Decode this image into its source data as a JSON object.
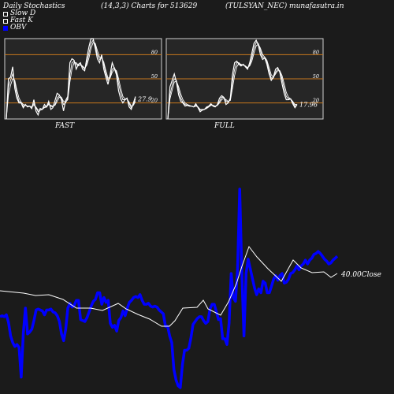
{
  "header": {
    "title": "Daily Stochastics",
    "params": "(14,3,3) Charts for 513629",
    "symbol": "(TULSYAN_NEC) munafasutra.in"
  },
  "legend": [
    {
      "label": "Slow  D",
      "color": "#ffffff",
      "style": "outline"
    },
    {
      "label": "Fast K",
      "color": "#ffffff",
      "style": "outline"
    },
    {
      "label": "OBV",
      "color": "#0000ff",
      "style": "fill"
    }
  ],
  "chart_data": [
    {
      "type": "line",
      "title": "FAST",
      "ylim": [
        0,
        100
      ],
      "gridlines": [
        20,
        50,
        80
      ],
      "gridline_labels": [
        "20",
        "50",
        "80"
      ],
      "last_value_label": "27.9",
      "series": [
        {
          "values": [
            0,
            50,
            52,
            65,
            38,
            26,
            20,
            20,
            14,
            18,
            15,
            16,
            13,
            24,
            10,
            5,
            13,
            12,
            18,
            15,
            22,
            12,
            14,
            23,
            32,
            30,
            24,
            10,
            23,
            28,
            70,
            75,
            73,
            62,
            68,
            70,
            62,
            60,
            76,
            90,
            100,
            100,
            88,
            75,
            70,
            80,
            62,
            52,
            43,
            55,
            70,
            63,
            55,
            35,
            25,
            20,
            24,
            26,
            15,
            12,
            20,
            27.9
          ]
        },
        {
          "values": [
            0,
            40,
            48,
            56,
            46,
            30,
            22,
            20,
            16,
            17,
            16,
            16,
            15,
            19,
            14,
            9,
            11,
            12,
            15,
            16,
            19,
            16,
            15,
            18,
            26,
            29,
            27,
            18,
            20,
            26,
            55,
            70,
            72,
            68,
            66,
            68,
            65,
            62,
            70,
            82,
            94,
            98,
            92,
            80,
            74,
            76,
            68,
            56,
            48,
            52,
            62,
            64,
            58,
            44,
            32,
            24,
            24,
            25,
            19,
            14,
            18,
            25
          ]
        },
        {
          "values": [
            0,
            30,
            42,
            50,
            48,
            36,
            26,
            21,
            18,
            17,
            16,
            16,
            15,
            17,
            15,
            11,
            11,
            12,
            14,
            15,
            18,
            17,
            16,
            17,
            22,
            27,
            27,
            22,
            21,
            24,
            46,
            62,
            70,
            70,
            67,
            67,
            66,
            63,
            67,
            76,
            88,
            95,
            94,
            85,
            77,
            76,
            71,
            60,
            51,
            51,
            58,
            62,
            60,
            50,
            38,
            28,
            25,
            25,
            21,
            16,
            17,
            22
          ]
        }
      ]
    },
    {
      "type": "line",
      "title": "FULL",
      "ylim": [
        0,
        100
      ],
      "gridlines": [
        20,
        50,
        80
      ],
      "gridline_labels": [
        "20",
        "50",
        "80"
      ],
      "last_value_label": "17.96",
      "series": [
        {
          "values": [
            0,
            40,
            48,
            56,
            46,
            30,
            22,
            20,
            16,
            17,
            16,
            16,
            15,
            19,
            14,
            9,
            11,
            12,
            15,
            16,
            19,
            16,
            15,
            18,
            26,
            29,
            27,
            18,
            20,
            26,
            55,
            70,
            72,
            68,
            66,
            68,
            65,
            62,
            70,
            82,
            94,
            98,
            92,
            80,
            74,
            76,
            68,
            56,
            48,
            52,
            62,
            64,
            58,
            44,
            32,
            24,
            24,
            25,
            19,
            14,
            18
          ]
        },
        {
          "values": [
            0,
            30,
            42,
            50,
            48,
            36,
            26,
            21,
            18,
            17,
            16,
            16,
            15,
            17,
            15,
            11,
            11,
            12,
            14,
            15,
            18,
            17,
            16,
            17,
            22,
            27,
            27,
            22,
            21,
            24,
            46,
            62,
            70,
            70,
            67,
            67,
            66,
            63,
            67,
            76,
            88,
            95,
            94,
            85,
            77,
            76,
            71,
            60,
            51,
            51,
            58,
            62,
            60,
            50,
            38,
            28,
            25,
            25,
            21,
            16,
            17.96
          ]
        },
        {
          "values": [
            0,
            25,
            36,
            46,
            47,
            40,
            31,
            24,
            20,
            18,
            17,
            16,
            15,
            16,
            15,
            12,
            12,
            12,
            13,
            15,
            17,
            17,
            16,
            17,
            20,
            24,
            26,
            24,
            22,
            23,
            38,
            54,
            65,
            69,
            68,
            67,
            66,
            64,
            66,
            72,
            82,
            91,
            93,
            88,
            80,
            77,
            73,
            64,
            55,
            52,
            56,
            60,
            60,
            54,
            44,
            33,
            27,
            25,
            22,
            18,
            18
          ]
        }
      ]
    },
    {
      "type": "line",
      "title": "",
      "last_value_label": "40.00Close",
      "series": [
        {
          "name": "OBV",
          "color": "#0000ff",
          "values": [
            75,
            76,
            75,
            77,
            69,
            55,
            48,
            44,
            46,
            43,
            12,
            58,
            84,
            57,
            59,
            62,
            71,
            82,
            83,
            82,
            81,
            77,
            82,
            82,
            83,
            80,
            79,
            76,
            70,
            57,
            50,
            62,
            84,
            89,
            85,
            87,
            92,
            92,
            72,
            71,
            70,
            74,
            80,
            86,
            91,
            93,
            100,
            100,
            88,
            95,
            90,
            92,
            68,
            64,
            66,
            60,
            71,
            74,
            81,
            76,
            84,
            90,
            92,
            95,
            96,
            95,
            98,
            92,
            88,
            88,
            89,
            86,
            85,
            86,
            85,
            82,
            80,
            78,
            65,
            65,
            55,
            48,
            20,
            9,
            3,
            1,
            25,
            40,
            40,
            42,
            53,
            67,
            70,
            73,
            75,
            75,
            71,
            68,
            70,
            83,
            88,
            88,
            80,
            72,
            73,
            52,
            52,
            46,
            68,
            120,
            95,
            91,
            125,
            208,
            120,
            55,
            120,
            135,
            125,
            115,
            105,
            98,
            104,
            100,
            112,
            110,
            100,
            100,
            107,
            114,
            118,
            113,
            118,
            120,
            110,
            111,
            114,
            120,
            121,
            124,
            128,
            124,
            128,
            130,
            134,
            130,
            134,
            136,
            140,
            141,
            143,
            141,
            138,
            135,
            133,
            130,
            131,
            134,
            136,
            138
          ]
        },
        {
          "name": "Close",
          "color": "#ffffff",
          "values": [
            40.0
          ]
        }
      ]
    }
  ]
}
